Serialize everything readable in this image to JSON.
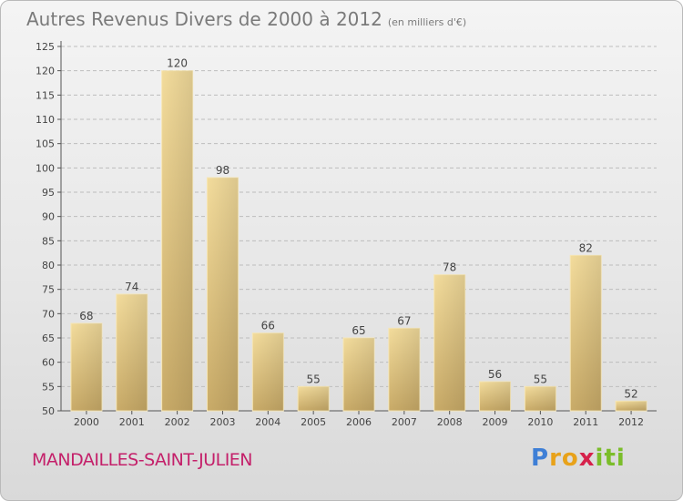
{
  "header": {
    "title": "Autres Revenus Divers de 2000 à 2012",
    "subtitle": "(en milliers d'€)"
  },
  "footer": {
    "commune": "MANDAILLES-SAINT-JULIEN",
    "logo_letters": [
      "P",
      "r",
      "o",
      "x",
      "i",
      "t",
      "i"
    ],
    "logo_colors": [
      "#3e7fd6",
      "#e8a21a",
      "#e8a21a",
      "#d6214b",
      "#7bbd2a",
      "#7bbd2a",
      "#7bbd2a"
    ]
  },
  "chart_data": {
    "type": "bar",
    "categories": [
      "2000",
      "2001",
      "2002",
      "2003",
      "2004",
      "2005",
      "2006",
      "2007",
      "2008",
      "2009",
      "2010",
      "2011",
      "2012"
    ],
    "values": [
      68,
      74,
      120,
      98,
      66,
      55,
      65,
      67,
      78,
      56,
      55,
      82,
      52
    ],
    "ylim": [
      50,
      125
    ],
    "yticks": [
      50,
      55,
      60,
      65,
      70,
      75,
      80,
      85,
      90,
      95,
      100,
      105,
      110,
      115,
      120,
      125
    ],
    "grid": true,
    "bar_color": "#e8cf8a",
    "legend": "none"
  }
}
